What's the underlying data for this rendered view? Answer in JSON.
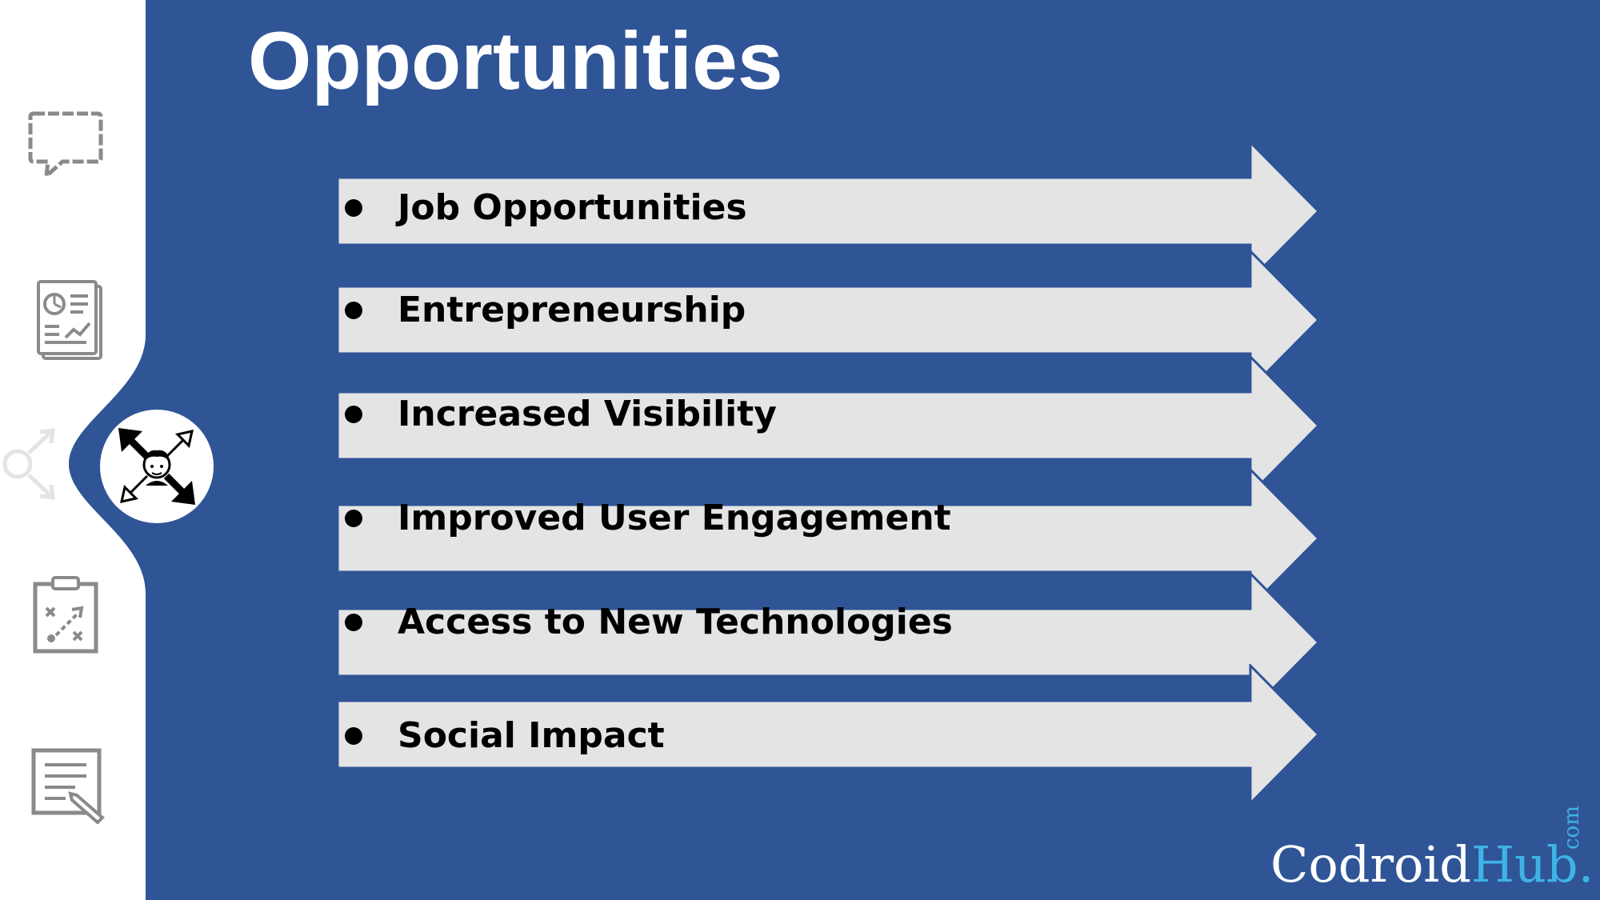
{
  "slide": {
    "title": "Opportunities",
    "items": [
      {
        "label": "Job Opportunities"
      },
      {
        "label": "Entrepreneurship"
      },
      {
        "label": "Increased Visibility"
      },
      {
        "label": "Improved User Engagement"
      },
      {
        "label": "Access to New Technologies"
      },
      {
        "label": "Social Impact"
      }
    ]
  },
  "sidebar": {
    "icons": [
      "chat-bubble-icon",
      "report-icon",
      "growth-arrows-icon",
      "strategy-clipboard-icon",
      "edit-document-icon"
    ],
    "active_icon": "growth-arrows-icon"
  },
  "brand": {
    "main": "Codroid",
    "accent": "Hub.",
    "tld": "com"
  },
  "colors": {
    "background_blue": "#2f5597",
    "arrow_fill": "#e4e4e4",
    "icon_gray": "#8a8a8a",
    "brand_accent": "#3fb3e6"
  }
}
